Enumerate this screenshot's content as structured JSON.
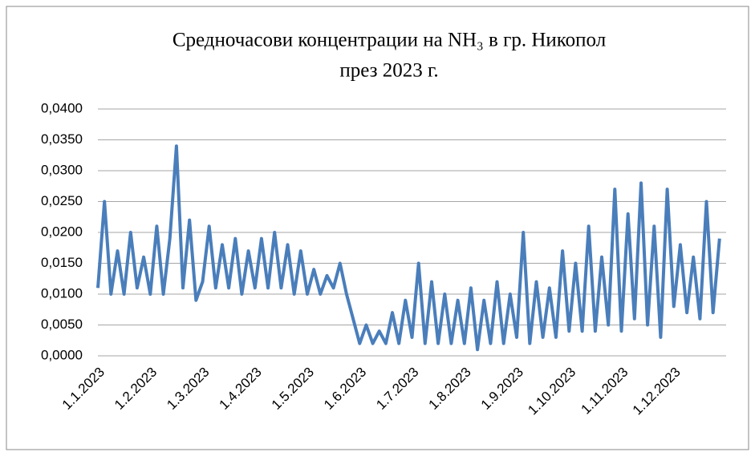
{
  "chart_data": {
    "type": "line",
    "title": "Средночасови концентрации на NH₃ в гр. Никопол",
    "subtitle": "през 2023  г.",
    "categories": [
      "1.1.2023",
      null,
      null,
      null,
      null,
      null,
      null,
      null,
      "1.2.2023",
      null,
      null,
      null,
      null,
      null,
      null,
      null,
      "1.3.2023",
      null,
      null,
      null,
      null,
      null,
      null,
      null,
      "1.4.2023",
      null,
      null,
      null,
      null,
      null,
      null,
      null,
      "1.5.2023",
      null,
      null,
      null,
      null,
      null,
      null,
      null,
      "1.6.2023",
      null,
      null,
      null,
      null,
      null,
      null,
      null,
      "1.7.2023",
      null,
      null,
      null,
      null,
      null,
      null,
      null,
      "1.8.2023",
      null,
      null,
      null,
      null,
      null,
      null,
      null,
      "1.9.2023",
      null,
      null,
      null,
      null,
      null,
      null,
      null,
      "1.10.2023",
      null,
      null,
      null,
      null,
      null,
      null,
      null,
      "1.11.2023",
      null,
      null,
      null,
      null,
      null,
      null,
      null,
      "1.12.2023",
      null,
      null,
      null,
      null,
      null,
      null,
      null
    ],
    "values": [
      0.011,
      0.025,
      0.01,
      0.017,
      0.01,
      0.02,
      0.011,
      0.016,
      0.01,
      0.021,
      0.01,
      0.019,
      0.034,
      0.011,
      0.022,
      0.009,
      0.012,
      0.021,
      0.011,
      0.018,
      0.011,
      0.019,
      0.01,
      0.017,
      0.011,
      0.019,
      0.011,
      0.02,
      0.011,
      0.018,
      0.01,
      0.017,
      0.01,
      0.014,
      0.01,
      0.013,
      0.011,
      0.015,
      0.01,
      0.006,
      0.002,
      0.005,
      0.002,
      0.004,
      0.002,
      0.007,
      0.002,
      0.009,
      0.003,
      0.015,
      0.002,
      0.012,
      0.002,
      0.01,
      0.002,
      0.009,
      0.002,
      0.011,
      0.001,
      0.009,
      0.002,
      0.012,
      0.002,
      0.01,
      0.003,
      0.02,
      0.002,
      0.012,
      0.003,
      0.011,
      0.003,
      0.017,
      0.004,
      0.015,
      0.004,
      0.021,
      0.004,
      0.016,
      0.005,
      0.027,
      0.004,
      0.023,
      0.006,
      0.028,
      0.005,
      0.021,
      0.003,
      0.027,
      0.008,
      0.018,
      0.007,
      0.016,
      0.006,
      0.025,
      0.007,
      0.019
    ],
    "color": "#4a7ebb",
    "ylim": [
      0,
      0.04
    ],
    "yticks": [
      {
        "value": 0,
        "label": "0,0000"
      },
      {
        "value": 0.005,
        "label": "0,0050"
      },
      {
        "value": 0.01,
        "label": "0,0100"
      },
      {
        "value": 0.015,
        "label": "0,0150"
      },
      {
        "value": 0.02,
        "label": "0,0200"
      },
      {
        "value": 0.025,
        "label": "0,0250"
      },
      {
        "value": 0.03,
        "label": "0,0300"
      },
      {
        "value": 0.035,
        "label": "0,0350"
      },
      {
        "value": 0.04,
        "label": "0,0400"
      }
    ],
    "grid": true
  }
}
